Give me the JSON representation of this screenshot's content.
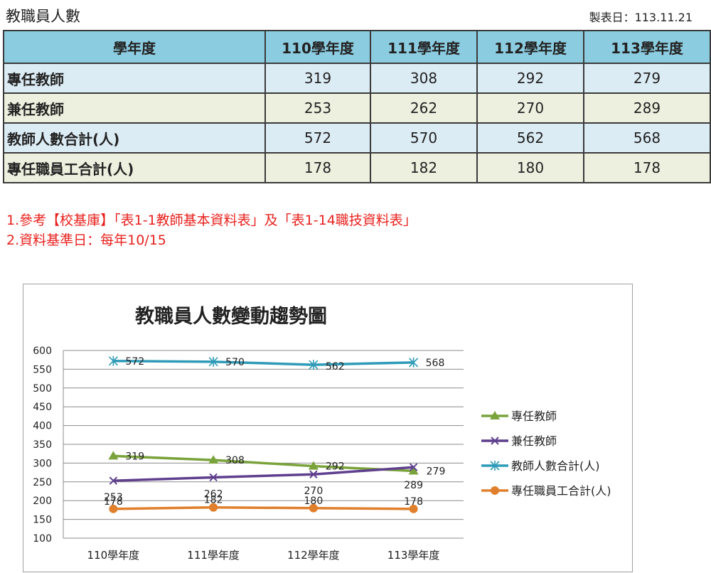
{
  "header": {
    "title": "教職員人數",
    "date_label": "製表日：113.11.21"
  },
  "table": {
    "columns": [
      "學年度",
      "110學年度",
      "111學年度",
      "112學年度",
      "113學年度"
    ],
    "rows": [
      {
        "label": "專任教師",
        "values": [
          "319",
          "308",
          "292",
          "279"
        ]
      },
      {
        "label": "兼任教師",
        "values": [
          "253",
          "262",
          "270",
          "289"
        ]
      },
      {
        "label": "教師人數合計(人)",
        "values": [
          "572",
          "570",
          "562",
          "568"
        ]
      },
      {
        "label": "專任職員工合計(人)",
        "values": [
          "178",
          "182",
          "180",
          "178"
        ]
      }
    ]
  },
  "notes": [
    "1.參考【校基庫】「表1-1教師基本資料表」及「表1-14職技資料表」",
    "2.資料基準日：每年10/15"
  ],
  "chart_data": {
    "type": "line",
    "title": "教職員人數變動趨勢圖",
    "categories": [
      "110學年度",
      "111學年度",
      "112學年度",
      "113學年度"
    ],
    "ylim": [
      100,
      600
    ],
    "yticks": [
      100,
      150,
      200,
      250,
      300,
      350,
      400,
      450,
      500,
      550,
      600
    ],
    "grid": true,
    "legend_position": "right",
    "series": [
      {
        "name": "專任教師",
        "values": [
          319,
          308,
          292,
          279
        ],
        "color": "#7aa33c",
        "marker": "triangle"
      },
      {
        "name": "兼任教師",
        "values": [
          253,
          262,
          270,
          289
        ],
        "color": "#5f3f8e",
        "marker": "x"
      },
      {
        "name": "教師人數合計(人)",
        "values": [
          572,
          570,
          562,
          568
        ],
        "color": "#2f9bb8",
        "marker": "star"
      },
      {
        "name": "專任職員工合計(人)",
        "values": [
          178,
          182,
          180,
          178
        ],
        "color": "#e07f2c",
        "marker": "circle"
      }
    ]
  }
}
